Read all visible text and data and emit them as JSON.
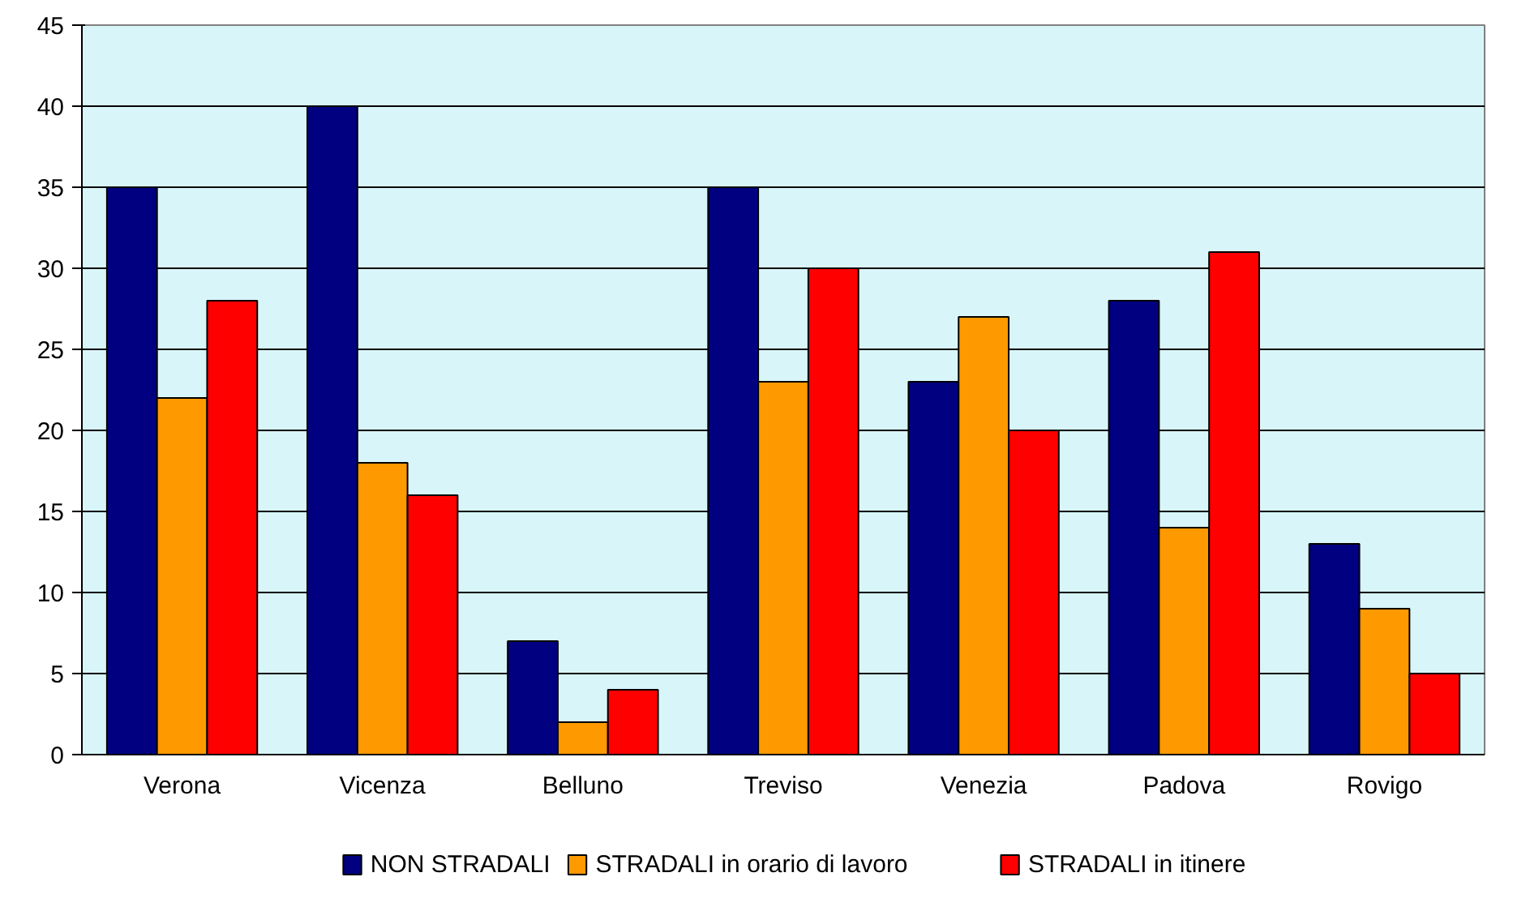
{
  "chart_data": {
    "type": "bar",
    "categories": [
      "Verona",
      "Vicenza",
      "Belluno",
      "Treviso",
      "Venezia",
      "Padova",
      "Rovigo"
    ],
    "series": [
      {
        "name": "NON STRADALI",
        "color": "#000080",
        "values": [
          35,
          40,
          7,
          35,
          23,
          28,
          13
        ]
      },
      {
        "name": "STRADALI in orario di lavoro",
        "color": "#ff9900",
        "values": [
          22,
          18,
          2,
          23,
          27,
          14,
          9
        ]
      },
      {
        "name": "STRADALI in itinere",
        "color": "#ff0000",
        "values": [
          28,
          16,
          4,
          30,
          20,
          31,
          5
        ]
      }
    ],
    "ylim": [
      0,
      45
    ],
    "yticks": [
      0,
      5,
      10,
      15,
      20,
      25,
      30,
      35,
      40,
      45
    ],
    "grid": "y",
    "legend": "bottom"
  }
}
